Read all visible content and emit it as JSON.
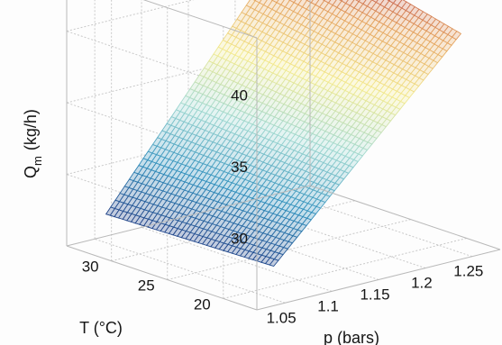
{
  "chart_data": {
    "type": "surface",
    "x": {
      "label": "p (bars)",
      "ticks": [
        "1.05",
        "1.1",
        "1.15",
        "1.2",
        "1.25"
      ],
      "range": [
        1.02,
        1.28
      ]
    },
    "y": {
      "label": "T (°C)",
      "ticks": [
        "20",
        "25",
        "30"
      ],
      "range": [
        17,
        34
      ]
    },
    "z": {
      "label_main": "Q",
      "label_sub": "m",
      "label_unit": "(kg/h)",
      "ticks": [
        "30",
        "35",
        "40"
      ],
      "range": [
        25,
        44
      ]
    },
    "surface": {
      "p_range": [
        1.05,
        1.25
      ],
      "T_range": [
        18,
        33
      ],
      "corners": [
        {
          "p": 1.05,
          "T": 33,
          "Q": 27
        },
        {
          "p": 1.05,
          "T": 18,
          "Q": 27.3
        },
        {
          "p": 1.25,
          "T": 33,
          "Q": 43.2
        },
        {
          "p": 1.25,
          "T": 18,
          "Q": 40.3
        }
      ],
      "mesh": [
        40,
        40
      ]
    },
    "colormap": [
      "#1f3f86",
      "#2f8fbc",
      "#9fd8d0",
      "#f3ea8e",
      "#e4a25e",
      "#a41a3b"
    ],
    "grid": true
  }
}
